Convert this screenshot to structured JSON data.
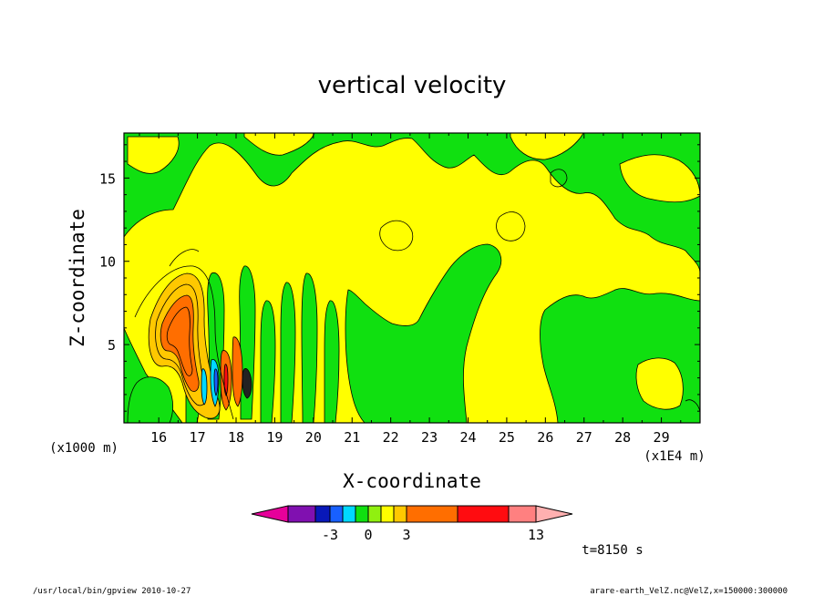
{
  "chart_data": {
    "type": "heatmap",
    "title": "vertical velocity",
    "xlabel": "X-coordinate",
    "ylabel": "Z-coordinate",
    "x_unit": "(x1E4 m)",
    "y_unit": "(x1000 m)",
    "x_ticks": [
      "16",
      "17",
      "18",
      "19",
      "20",
      "21",
      "22",
      "23",
      "24",
      "25",
      "26",
      "27",
      "28",
      "29"
    ],
    "y_ticks": [
      "5",
      "10",
      "15"
    ],
    "xlim": [
      15.1,
      30.0
    ],
    "ylim": [
      0.3,
      17.7
    ],
    "time_label": "t=8150 s",
    "colorbar": {
      "colors": [
        "#e6009a",
        "#8010b0",
        "#0818b8",
        "#1860ff",
        "#00d8ff",
        "#10e010",
        "#90f010",
        "#ffff00",
        "#ffc800",
        "#ff6e00",
        "#ff0c10",
        "#ff8080",
        "#ffb0b0"
      ],
      "labels": [
        "-3",
        "0",
        "3",
        "13"
      ]
    },
    "contour_levels": [
      -6,
      -5,
      -4,
      -3,
      -2,
      -1,
      0,
      1,
      2,
      3,
      8,
      13
    ],
    "features": [
      {
        "name": "green-background",
        "value": -0.5
      },
      {
        "name": "yellow-updraft-bands",
        "value": 0.5
      },
      {
        "name": "updraft-core",
        "x": 16.7,
        "z": 6.0,
        "value": 7
      },
      {
        "name": "low-level-cells",
        "x_range": [
          17.2,
          18.3
        ],
        "z_range": [
          0.5,
          4.5
        ],
        "value_range": [
          -3,
          5
        ]
      }
    ]
  },
  "footer": {
    "left": "/usr/local/bin/gpview   2010-10-27",
    "right": "arare-earth_VelZ.nc@VelZ,x=150000:300000"
  }
}
